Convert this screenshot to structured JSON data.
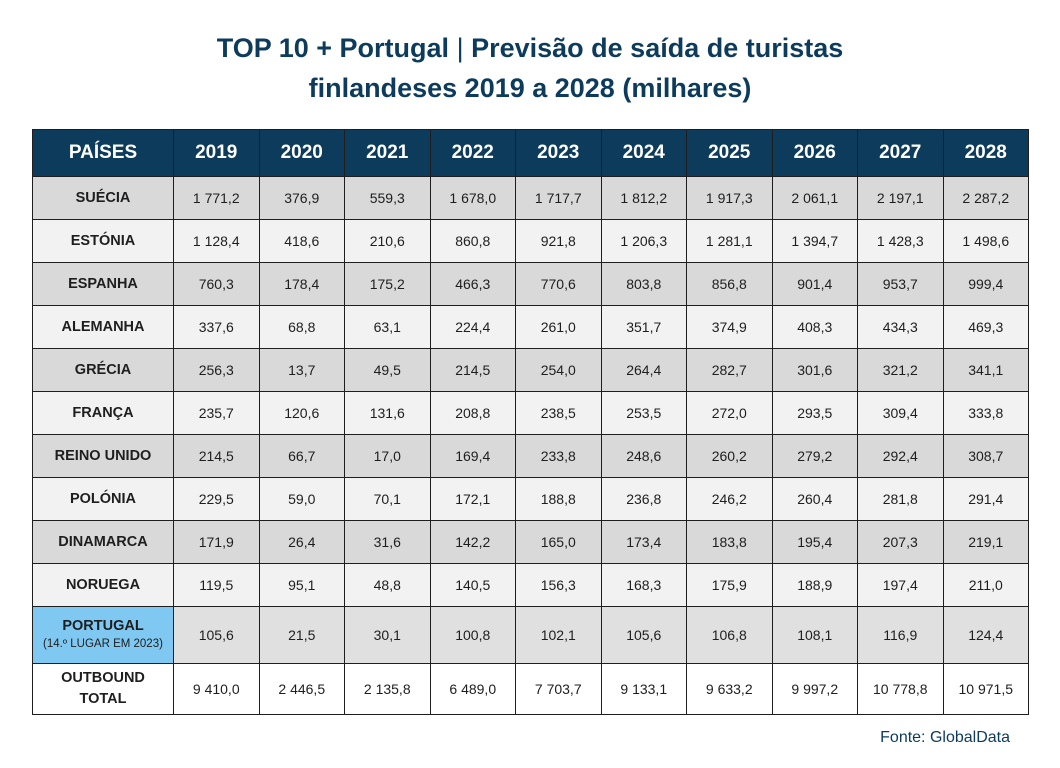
{
  "title": {
    "bold": "TOP 10 + Portugal",
    "separator": " | ",
    "rest": "Previsão de saída de turistas",
    "line2": "finlandeses 2019 a 2028 (milhares)"
  },
  "table": {
    "header": [
      "PAÍSES",
      "2019",
      "2020",
      "2021",
      "2022",
      "2023",
      "2024",
      "2025",
      "2026",
      "2027",
      "2028"
    ],
    "rows": [
      {
        "country": "SUÉCIA",
        "values": [
          "1 771,2",
          "376,9",
          "559,3",
          "1 678,0",
          "1 717,7",
          "1 812,2",
          "1 917,3",
          "2 061,1",
          "2 197,1",
          "2 287,2"
        ]
      },
      {
        "country": "ESTÓNIA",
        "values": [
          "1 128,4",
          "418,6",
          "210,6",
          "860,8",
          "921,8",
          "1 206,3",
          "1 281,1",
          "1 394,7",
          "1 428,3",
          "1 498,6"
        ]
      },
      {
        "country": "ESPANHA",
        "values": [
          "760,3",
          "178,4",
          "175,2",
          "466,3",
          "770,6",
          "803,8",
          "856,8",
          "901,4",
          "953,7",
          "999,4"
        ]
      },
      {
        "country": "ALEMANHA",
        "values": [
          "337,6",
          "68,8",
          "63,1",
          "224,4",
          "261,0",
          "351,7",
          "374,9",
          "408,3",
          "434,3",
          "469,3"
        ]
      },
      {
        "country": "GRÉCIA",
        "values": [
          "256,3",
          "13,7",
          "49,5",
          "214,5",
          "254,0",
          "264,4",
          "282,7",
          "301,6",
          "321,2",
          "341,1"
        ]
      },
      {
        "country": "FRANÇA",
        "values": [
          "235,7",
          "120,6",
          "131,6",
          "208,8",
          "238,5",
          "253,5",
          "272,0",
          "293,5",
          "309,4",
          "333,8"
        ]
      },
      {
        "country": "REINO UNIDO",
        "values": [
          "214,5",
          "66,7",
          "17,0",
          "169,4",
          "233,8",
          "248,6",
          "260,2",
          "279,2",
          "292,4",
          "308,7"
        ]
      },
      {
        "country": "POLÓNIA",
        "values": [
          "229,5",
          "59,0",
          "70,1",
          "172,1",
          "188,8",
          "236,8",
          "246,2",
          "260,4",
          "281,8",
          "291,4"
        ]
      },
      {
        "country": "DINAMARCA",
        "values": [
          "171,9",
          "26,4",
          "31,6",
          "142,2",
          "165,0",
          "173,4",
          "183,8",
          "195,4",
          "207,3",
          "219,1"
        ]
      },
      {
        "country": "NORUEGA",
        "values": [
          "119,5",
          "95,1",
          "48,8",
          "140,5",
          "156,3",
          "168,3",
          "175,9",
          "188,9",
          "197,4",
          "211,0"
        ]
      }
    ],
    "portugal": {
      "country": "PORTUGAL",
      "note": "(14.º LUGAR EM 2023)",
      "values": [
        "105,6",
        "21,5",
        "30,1",
        "100,8",
        "102,1",
        "105,6",
        "106,8",
        "108,1",
        "116,9",
        "124,4"
      ]
    },
    "total": {
      "line1": "OUTBOUND",
      "line2": "TOTAL",
      "values": [
        "9 410,0",
        "2 446,5",
        "2 135,8",
        "6 489,0",
        "7 703,7",
        "9 133,1",
        "9 633,2",
        "9 997,2",
        "10 778,8",
        "10 971,5"
      ]
    }
  },
  "source": "Fonte: GlobalData",
  "colors": {
    "header_bg": "#0d3b5c",
    "title_text": "#0d3b5c",
    "portugal_highlight": "#7ec8f2",
    "row_dark": "#d9d9d9",
    "row_light": "#f2f2f2"
  }
}
